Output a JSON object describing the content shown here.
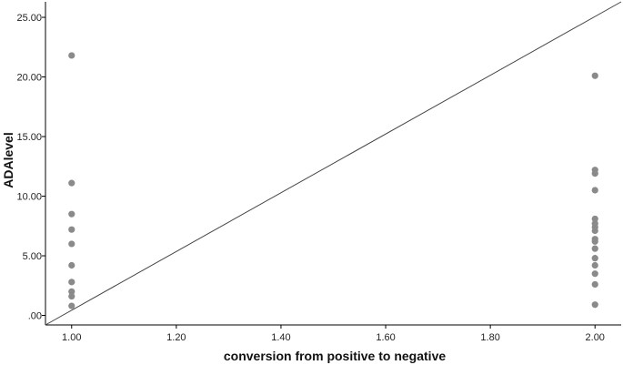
{
  "chart_data": {
    "type": "scatter",
    "title": "",
    "xlabel": "conversion from positive to negative",
    "ylabel": "ADAlevel",
    "xlim": [
      0.95,
      2.05
    ],
    "ylim": [
      -0.8,
      26.3
    ],
    "x_ticks": [
      {
        "value": 1.0,
        "label": "1.00"
      },
      {
        "value": 1.2,
        "label": "1.20"
      },
      {
        "value": 1.4,
        "label": "1.40"
      },
      {
        "value": 1.6,
        "label": "1.60"
      },
      {
        "value": 1.8,
        "label": "1.80"
      },
      {
        "value": 2.0,
        "label": "2.00"
      }
    ],
    "y_ticks": [
      {
        "value": 0,
        "label": ".00"
      },
      {
        "value": 5,
        "label": "5.00"
      },
      {
        "value": 10,
        "label": "10.00"
      },
      {
        "value": 15,
        "label": "15.00"
      },
      {
        "value": 20,
        "label": "20.00"
      },
      {
        "value": 25,
        "label": "25.00"
      }
    ],
    "grid": false,
    "points": [
      {
        "x": 1.0,
        "y": 21.8
      },
      {
        "x": 1.0,
        "y": 11.1
      },
      {
        "x": 1.0,
        "y": 8.5
      },
      {
        "x": 1.0,
        "y": 7.2
      },
      {
        "x": 1.0,
        "y": 6.0
      },
      {
        "x": 1.0,
        "y": 4.2
      },
      {
        "x": 1.0,
        "y": 2.8
      },
      {
        "x": 1.0,
        "y": 2.0
      },
      {
        "x": 1.0,
        "y": 1.6
      },
      {
        "x": 1.0,
        "y": 0.8
      },
      {
        "x": 2.0,
        "y": 20.1
      },
      {
        "x": 2.0,
        "y": 12.2
      },
      {
        "x": 2.0,
        "y": 11.9
      },
      {
        "x": 2.0,
        "y": 10.5
      },
      {
        "x": 2.0,
        "y": 8.1
      },
      {
        "x": 2.0,
        "y": 7.7
      },
      {
        "x": 2.0,
        "y": 7.4
      },
      {
        "x": 2.0,
        "y": 7.1
      },
      {
        "x": 2.0,
        "y": 6.4
      },
      {
        "x": 2.0,
        "y": 6.2
      },
      {
        "x": 2.0,
        "y": 5.6
      },
      {
        "x": 2.0,
        "y": 4.8
      },
      {
        "x": 2.0,
        "y": 4.2
      },
      {
        "x": 2.0,
        "y": 3.5
      },
      {
        "x": 2.0,
        "y": 2.6
      },
      {
        "x": 2.0,
        "y": 0.9
      }
    ],
    "reference_line": {
      "from": [
        0.95,
        -0.8
      ],
      "to": [
        2.05,
        26.3
      ]
    },
    "colors": {
      "marker": "#8a8a8a",
      "line": "#444444",
      "axis": "#000000"
    }
  }
}
